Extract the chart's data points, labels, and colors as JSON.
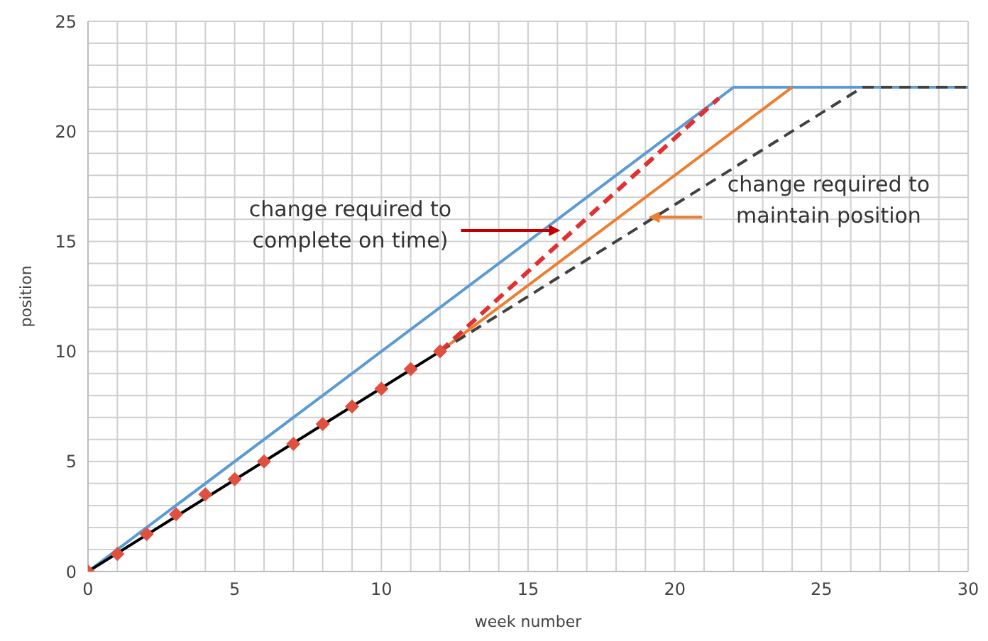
{
  "chart_data": {
    "type": "line",
    "xlabel": "week number",
    "ylabel": "position",
    "xlim": [
      0,
      30
    ],
    "ylim": [
      0,
      25
    ],
    "xticks": [
      0,
      {
        "value": 1,
        "label": null
      },
      {
        "value": 2,
        "label": null
      },
      {
        "value": 3,
        "label": null
      },
      {
        "value": 4,
        "label": null
      },
      5,
      {
        "value": 6,
        "label": null
      },
      {
        "value": 7,
        "label": null
      },
      {
        "value": 8,
        "label": null
      },
      {
        "value": 9,
        "label": null
      },
      10,
      {
        "value": 11,
        "label": null
      },
      {
        "value": 12,
        "label": null
      },
      {
        "value": 13,
        "label": null
      },
      {
        "value": 14,
        "label": null
      },
      15,
      {
        "value": 16,
        "label": null
      },
      {
        "value": 17,
        "label": null
      },
      {
        "value": 18,
        "label": null
      },
      {
        "value": 19,
        "label": null
      },
      20,
      {
        "value": 21,
        "label": null
      },
      {
        "value": 22,
        "label": null
      },
      {
        "value": 23,
        "label": null
      },
      {
        "value": 24,
        "label": null
      },
      25,
      {
        "value": 26,
        "label": null
      },
      {
        "value": 27,
        "label": null
      },
      {
        "value": 28,
        "label": null
      },
      {
        "value": 29,
        "label": null
      },
      30
    ],
    "yticks": [
      0,
      {
        "value": 1,
        "label": null
      },
      {
        "value": 2,
        "label": null
      },
      {
        "value": 3,
        "label": null
      },
      {
        "value": 4,
        "label": null
      },
      5,
      {
        "value": 6,
        "label": null
      },
      {
        "value": 7,
        "label": null
      },
      {
        "value": 8,
        "label": null
      },
      {
        "value": 9,
        "label": null
      },
      10,
      {
        "value": 11,
        "label": null
      },
      {
        "value": 12,
        "label": null
      },
      {
        "value": 13,
        "label": null
      },
      {
        "value": 14,
        "label": null
      },
      15,
      {
        "value": 16,
        "label": null
      },
      {
        "value": 17,
        "label": null
      },
      {
        "value": 18,
        "label": null
      },
      {
        "value": 19,
        "label": null
      },
      20,
      {
        "value": 21,
        "label": null
      },
      {
        "value": 22,
        "label": null
      },
      {
        "value": 23,
        "label": null
      },
      {
        "value": 24,
        "label": null
      },
      25
    ],
    "grid": true,
    "series": [
      {
        "color": "#5b9bd5",
        "x": [
          0,
          22,
          30
        ],
        "values": [
          0,
          22,
          22
        ],
        "line_style": "solid",
        "marker": "none"
      },
      {
        "color": "#ed7d31",
        "x": [
          12,
          24
        ],
        "values": [
          10,
          22
        ],
        "line_style": "solid",
        "marker": "none"
      },
      {
        "color": "#404040",
        "x": [
          12,
          26.4,
          30
        ],
        "values": [
          10,
          22,
          22
        ],
        "line_style": "dashed",
        "marker": "none"
      },
      {
        "color": "#e03030",
        "x": [
          12,
          21.5
        ],
        "values": [
          10,
          21.5
        ],
        "line_style": "dashed",
        "marker": "none"
      },
      {
        "type": "scatter",
        "color": "#e05040",
        "x": [
          0,
          1,
          2,
          3,
          4,
          5,
          6,
          7,
          8,
          9,
          10,
          11,
          12
        ],
        "values": [
          0,
          0.8,
          1.7,
          2.6,
          3.5,
          4.2,
          5,
          5.8,
          6.7,
          7.5,
          8.3,
          9.2,
          10
        ],
        "marker": "diamond"
      },
      {
        "color": "#000000",
        "x": [
          0,
          12
        ],
        "values": [
          0,
          10
        ],
        "line_style": "solid",
        "marker": "none"
      }
    ],
    "annotations": [
      {
        "text": "change required to\ncomplete on time)",
        "x": 16.1,
        "y": 15.5
      },
      {
        "text": "change required to\nmaintain position",
        "x": 19.1,
        "y": 16.1
      }
    ]
  }
}
